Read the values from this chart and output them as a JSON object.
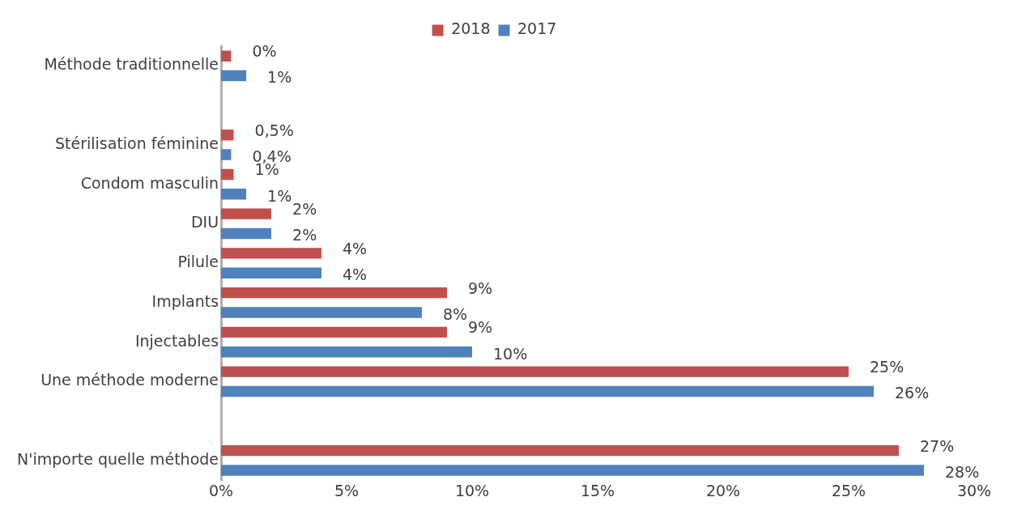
{
  "chart_data": {
    "type": "bar",
    "orientation": "horizontal",
    "categories": [
      "Méthode traditionnelle",
      null,
      "Stérilisation féminine",
      "Condom masculin",
      "DIU",
      "Pilule",
      "Implants",
      "Injectables",
      "Une méthode moderne",
      null,
      "N'importe quelle méthode"
    ],
    "series": [
      {
        "name": "2018",
        "color": "#c0504d",
        "values": [
          0.4,
          null,
          0.5,
          0.5,
          2,
          4,
          9,
          9,
          25,
          null,
          27
        ],
        "value_labels": [
          "0%",
          null,
          "0,5%",
          "1%",
          "2%",
          "4%",
          "9%",
          "9%",
          "25%",
          null,
          "27%"
        ]
      },
      {
        "name": "2017",
        "color": "#4f81bd",
        "values": [
          1,
          null,
          0.4,
          1,
          2,
          4,
          8,
          10,
          26,
          null,
          28
        ],
        "value_labels": [
          "1%",
          null,
          "0,4%",
          "1%",
          "2%",
          "4%",
          "8%",
          "10%",
          "26%",
          null,
          "28%"
        ]
      }
    ],
    "xlim": [
      0,
      30
    ],
    "xticks": [
      {
        "value": 0,
        "label": "0%"
      },
      {
        "value": 5,
        "label": "5%"
      },
      {
        "value": 10,
        "label": "10%"
      },
      {
        "value": 15,
        "label": "15%"
      },
      {
        "value": 20,
        "label": "20%"
      },
      {
        "value": 25,
        "label": "25%"
      },
      {
        "value": 30,
        "label": "30%"
      }
    ],
    "grid": false,
    "legend": "top"
  }
}
